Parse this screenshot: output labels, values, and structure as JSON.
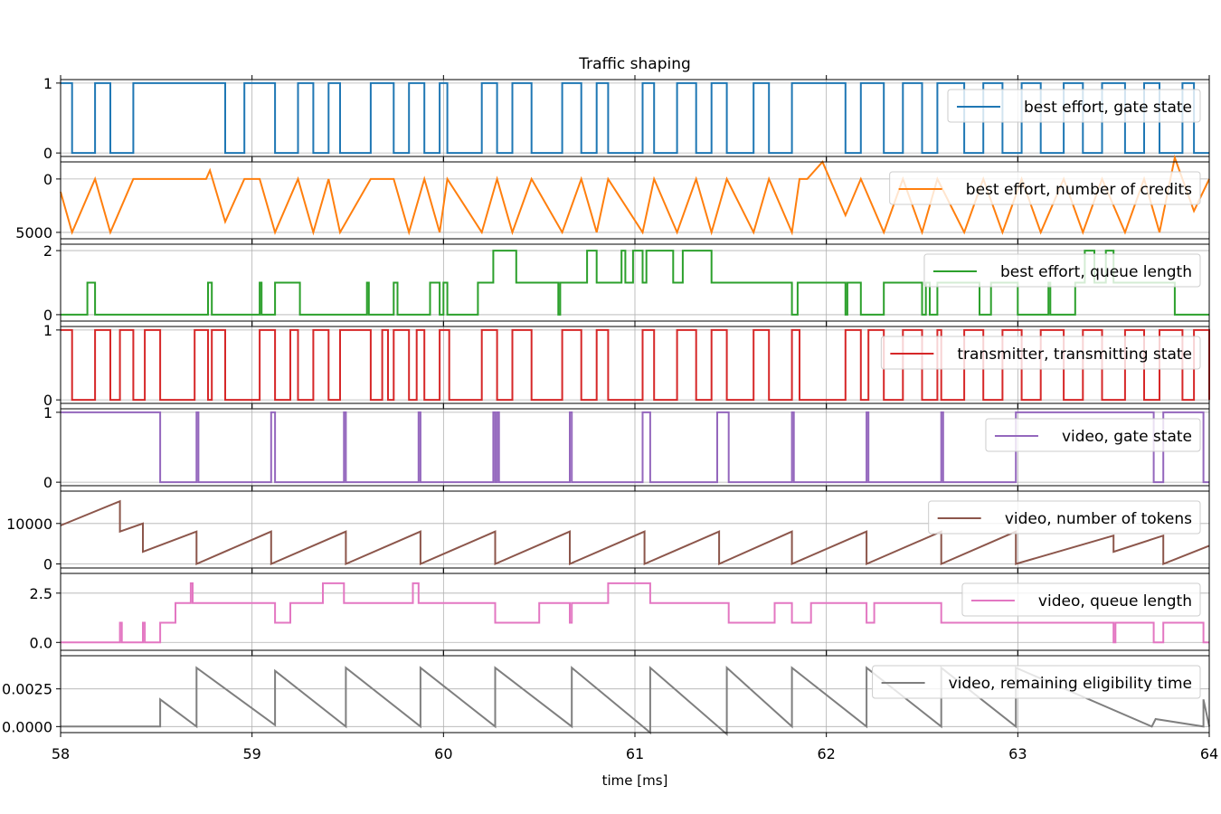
{
  "chart_data": {
    "type": "line",
    "title": "Traffic shaping",
    "xlabel": "time [ms]",
    "xlim": [
      58,
      64
    ],
    "x_ticks": [
      58,
      59,
      60,
      61,
      62,
      63,
      64
    ],
    "grid": true,
    "legend_placement": "upper-right",
    "panels": [
      {
        "name": "best effort, gate state",
        "color": "#1f77b4",
        "step": true,
        "ylim": [
          -0.05,
          1.05
        ],
        "y_ticks": [
          {
            "v": 1,
            "label": "1"
          },
          {
            "v": 0,
            "label": "0"
          }
        ],
        "x": [
          58.0,
          58.06,
          58.18,
          58.26,
          58.38,
          58.86,
          58.96,
          59.12,
          59.24,
          59.32,
          59.4,
          59.46,
          59.62,
          59.74,
          59.82,
          59.9,
          59.98,
          60.02,
          60.2,
          60.28,
          60.36,
          60.46,
          60.62,
          60.72,
          60.8,
          60.86,
          61.04,
          61.1,
          61.22,
          61.32,
          61.4,
          61.48,
          61.62,
          61.7,
          61.82,
          62.1,
          62.18,
          62.3,
          62.4,
          62.5,
          62.58,
          62.72,
          62.82,
          62.92,
          63.02,
          63.12,
          63.24,
          63.34,
          63.44,
          63.56,
          63.66,
          63.74,
          63.86,
          63.92,
          64.0
        ],
        "y": [
          1,
          0,
          1,
          0,
          1,
          0,
          1,
          0,
          1,
          0,
          1,
          0,
          1,
          0,
          1,
          0,
          1,
          0,
          1,
          0,
          1,
          0,
          1,
          0,
          1,
          0,
          1,
          0,
          1,
          0,
          1,
          0,
          1,
          0,
          1,
          0,
          1,
          0,
          1,
          0,
          1,
          0,
          1,
          0,
          1,
          0,
          1,
          0,
          1,
          0,
          1,
          0,
          1,
          0,
          0
        ]
      },
      {
        "name": "best effort, number of credits",
        "color": "#ff7f0e",
        "step": false,
        "ylim": [
          -5600,
          1600
        ],
        "y_ticks": [
          {
            "v": 0,
            "label": "0"
          },
          {
            "v": -5000,
            "label": "5000"
          }
        ],
        "x": [
          58.0,
          58.06,
          58.18,
          58.26,
          58.38,
          58.76,
          58.78,
          58.86,
          58.96,
          59.04,
          59.12,
          59.24,
          59.32,
          59.4,
          59.46,
          59.62,
          59.74,
          59.82,
          59.9,
          59.98,
          60.02,
          60.2,
          60.28,
          60.36,
          60.46,
          60.62,
          60.72,
          60.8,
          60.86,
          61.04,
          61.1,
          61.22,
          61.32,
          61.4,
          61.48,
          61.62,
          61.7,
          61.82,
          61.86,
          61.9,
          61.98,
          62.1,
          62.18,
          62.3,
          62.4,
          62.5,
          62.58,
          62.72,
          62.82,
          62.92,
          63.02,
          63.12,
          63.24,
          63.34,
          63.44,
          63.56,
          63.66,
          63.74,
          63.82,
          63.92,
          64.0
        ],
        "y": [
          -1200,
          -5000,
          0,
          -5000,
          0,
          0,
          800,
          -4000,
          0,
          0,
          -5000,
          0,
          -5000,
          0,
          -5000,
          0,
          0,
          -5000,
          0,
          -5000,
          0,
          -5000,
          0,
          -5000,
          0,
          -5000,
          0,
          -5000,
          0,
          -5000,
          0,
          -5000,
          0,
          -5000,
          0,
          -5000,
          0,
          -5000,
          0,
          0,
          1600,
          -3400,
          0,
          -5000,
          0,
          -5000,
          0,
          -5000,
          0,
          -5000,
          0,
          -5000,
          0,
          -5000,
          0,
          -5000,
          0,
          -5000,
          2000,
          -3000,
          0
        ]
      },
      {
        "name": "best effort, queue length",
        "color": "#2ca02c",
        "step": true,
        "ylim": [
          -0.2,
          2.2
        ],
        "y_ticks": [
          {
            "v": 2,
            "label": "2"
          },
          {
            "v": 0,
            "label": "0"
          }
        ],
        "x": [
          58.0,
          58.14,
          58.18,
          58.77,
          58.79,
          59.04,
          59.05,
          59.12,
          59.25,
          59.6,
          59.61,
          59.74,
          59.76,
          59.93,
          59.98,
          60.0,
          60.02,
          60.18,
          60.2,
          60.26,
          60.38,
          60.6,
          60.61,
          60.75,
          60.8,
          60.93,
          60.95,
          60.99,
          61.04,
          61.06,
          61.2,
          61.25,
          61.4,
          61.6,
          61.82,
          61.85,
          62.1,
          62.11,
          62.18,
          62.3,
          62.5,
          62.52,
          62.54,
          62.58,
          62.8,
          62.86,
          63.0,
          63.16,
          63.17,
          63.3,
          63.35,
          63.4,
          63.46,
          63.5,
          63.82,
          63.84,
          64.0
        ],
        "y": [
          0,
          1,
          0,
          1,
          0,
          1,
          0,
          1,
          0,
          1,
          0,
          1,
          0,
          1,
          0,
          1,
          0,
          1,
          1,
          2,
          1,
          0,
          1,
          2,
          1,
          2,
          1,
          2,
          1,
          2,
          1,
          2,
          1,
          1,
          0,
          1,
          0,
          1,
          0,
          1,
          0,
          1,
          0,
          1,
          0,
          1,
          0,
          1,
          0,
          1,
          2,
          1,
          2,
          1,
          0,
          0,
          0
        ]
      },
      {
        "name": "transmitter, transmitting state",
        "color": "#d62728",
        "step": true,
        "ylim": [
          -0.05,
          1.05
        ],
        "y_ticks": [
          {
            "v": 1,
            "label": "1"
          },
          {
            "v": 0,
            "label": "0"
          }
        ],
        "x": [
          58.0,
          58.06,
          58.18,
          58.26,
          58.31,
          58.38,
          58.44,
          58.52,
          58.7,
          58.77,
          58.79,
          58.86,
          59.04,
          59.12,
          59.2,
          59.24,
          59.32,
          59.4,
          59.46,
          59.62,
          59.68,
          59.71,
          59.74,
          59.82,
          59.86,
          59.9,
          59.98,
          60.03,
          60.2,
          60.28,
          60.36,
          60.46,
          60.62,
          60.72,
          60.8,
          60.86,
          61.04,
          61.1,
          61.22,
          61.32,
          61.4,
          61.48,
          61.62,
          61.7,
          61.82,
          61.86,
          62.1,
          62.18,
          62.22,
          62.3,
          62.4,
          62.5,
          62.58,
          62.6,
          62.72,
          62.82,
          62.92,
          63.02,
          63.12,
          63.24,
          63.34,
          63.44,
          63.56,
          63.66,
          63.74,
          63.86,
          63.92,
          64.0
        ],
        "y": [
          1,
          0,
          1,
          0,
          1,
          0,
          1,
          0,
          1,
          0,
          1,
          0,
          1,
          0,
          1,
          0,
          1,
          0,
          1,
          0,
          1,
          0,
          1,
          0,
          1,
          0,
          1,
          0,
          1,
          0,
          1,
          0,
          1,
          0,
          1,
          0,
          1,
          0,
          1,
          0,
          1,
          0,
          1,
          0,
          1,
          0,
          1,
          0,
          1,
          0,
          1,
          0,
          1,
          0,
          1,
          0,
          1,
          0,
          1,
          0,
          1,
          0,
          1,
          0,
          1,
          0,
          1,
          0
        ]
      },
      {
        "name": "video, gate state",
        "color": "#9467bd",
        "step": true,
        "ylim": [
          -0.05,
          1.05
        ],
        "y_ticks": [
          {
            "v": 1,
            "label": "1"
          },
          {
            "v": 0,
            "label": "0"
          }
        ],
        "x": [
          58.0,
          58.52,
          58.71,
          58.72,
          59.1,
          59.12,
          59.48,
          59.49,
          59.87,
          59.88,
          60.26,
          60.27,
          60.28,
          60.29,
          60.66,
          60.67,
          61.04,
          61.08,
          61.43,
          61.49,
          61.82,
          61.83,
          62.21,
          62.22,
          62.6,
          62.61,
          62.99,
          63.71,
          63.76,
          63.97,
          64.0
        ],
        "y": [
          1,
          0,
          1,
          0,
          1,
          0,
          1,
          0,
          1,
          0,
          1,
          0,
          1,
          0,
          1,
          0,
          1,
          0,
          1,
          0,
          1,
          0,
          1,
          0,
          1,
          0,
          1,
          0,
          1,
          0,
          0
        ]
      },
      {
        "name": "video, number of tokens",
        "color": "#8c564b",
        "step": false,
        "ylim": [
          -1000,
          18000
        ],
        "y_ticks": [
          {
            "v": 10000,
            "label": "10000"
          },
          {
            "v": 0,
            "label": "0"
          }
        ],
        "x": [
          58.0,
          58.31,
          58.31,
          58.43,
          58.43,
          58.71,
          58.71,
          59.1,
          59.1,
          59.49,
          59.49,
          59.88,
          59.88,
          60.27,
          60.27,
          60.66,
          60.66,
          61.05,
          61.05,
          61.44,
          61.44,
          61.82,
          61.82,
          62.21,
          62.21,
          62.6,
          62.6,
          62.99,
          62.99,
          63.5,
          63.5,
          63.76,
          63.76,
          64.0
        ],
        "y": [
          9500,
          15500,
          8000,
          10000,
          3000,
          8000,
          0,
          8000,
          0,
          8000,
          0,
          8000,
          0,
          8000,
          0,
          8000,
          0,
          8000,
          0,
          8000,
          0,
          8000,
          0,
          8000,
          0,
          8000,
          0,
          8000,
          0,
          7000,
          3000,
          7000,
          0,
          4500
        ]
      },
      {
        "name": "video, queue length",
        "color": "#e377c2",
        "step": true,
        "ylim": [
          -0.4,
          3.5
        ],
        "y_ticks": [
          {
            "v": 2.5,
            "label": "2.5"
          },
          {
            "v": 0.0,
            "label": "0.0"
          }
        ],
        "x": [
          58.0,
          58.31,
          58.32,
          58.43,
          58.44,
          58.52,
          58.6,
          58.68,
          58.69,
          58.71,
          59.12,
          59.2,
          59.37,
          59.48,
          59.84,
          59.87,
          60.27,
          60.5,
          60.66,
          60.67,
          60.68,
          60.86,
          61.08,
          61.49,
          61.73,
          61.82,
          61.92,
          62.21,
          62.25,
          62.6,
          63.5,
          63.51,
          63.71,
          63.76,
          63.97,
          64.0
        ],
        "y": [
          0,
          1,
          0,
          1,
          0,
          1,
          2,
          3,
          2,
          2,
          1,
          2,
          3,
          2,
          3,
          2,
          1,
          2,
          1,
          2,
          2,
          3,
          2,
          1,
          2,
          1,
          2,
          1,
          2,
          1,
          0,
          1,
          0,
          1,
          0,
          0
        ]
      },
      {
        "name": "video, remaining eligibility time",
        "color": "#7f7f7f",
        "step": false,
        "ylim": [
          -0.0004,
          0.0047
        ],
        "y_ticks": [
          {
            "v": 0.0025,
            "label": "0.0025"
          },
          {
            "v": 0.0,
            "label": "0.0000"
          }
        ],
        "x": [
          58.0,
          58.52,
          58.52,
          58.71,
          58.71,
          59.12,
          59.12,
          59.49,
          59.49,
          59.88,
          59.88,
          60.27,
          60.27,
          60.67,
          60.67,
          61.08,
          61.08,
          61.48,
          61.48,
          61.82,
          61.82,
          62.21,
          62.21,
          62.6,
          62.6,
          62.99,
          62.99,
          63.7,
          63.72,
          63.97,
          63.97,
          64.0
        ],
        "y": [
          0,
          0,
          0.0018,
          0,
          0.0039,
          0.0001,
          0.0037,
          0,
          0.0039,
          0,
          0.0039,
          0,
          0.0039,
          0,
          0.0039,
          -0.0004,
          0.0039,
          -0.0005,
          0.0039,
          0,
          0.0039,
          0,
          0.0039,
          0,
          0.0039,
          0,
          0.0039,
          0,
          0.0005,
          0,
          0.0018,
          0
        ]
      }
    ]
  }
}
